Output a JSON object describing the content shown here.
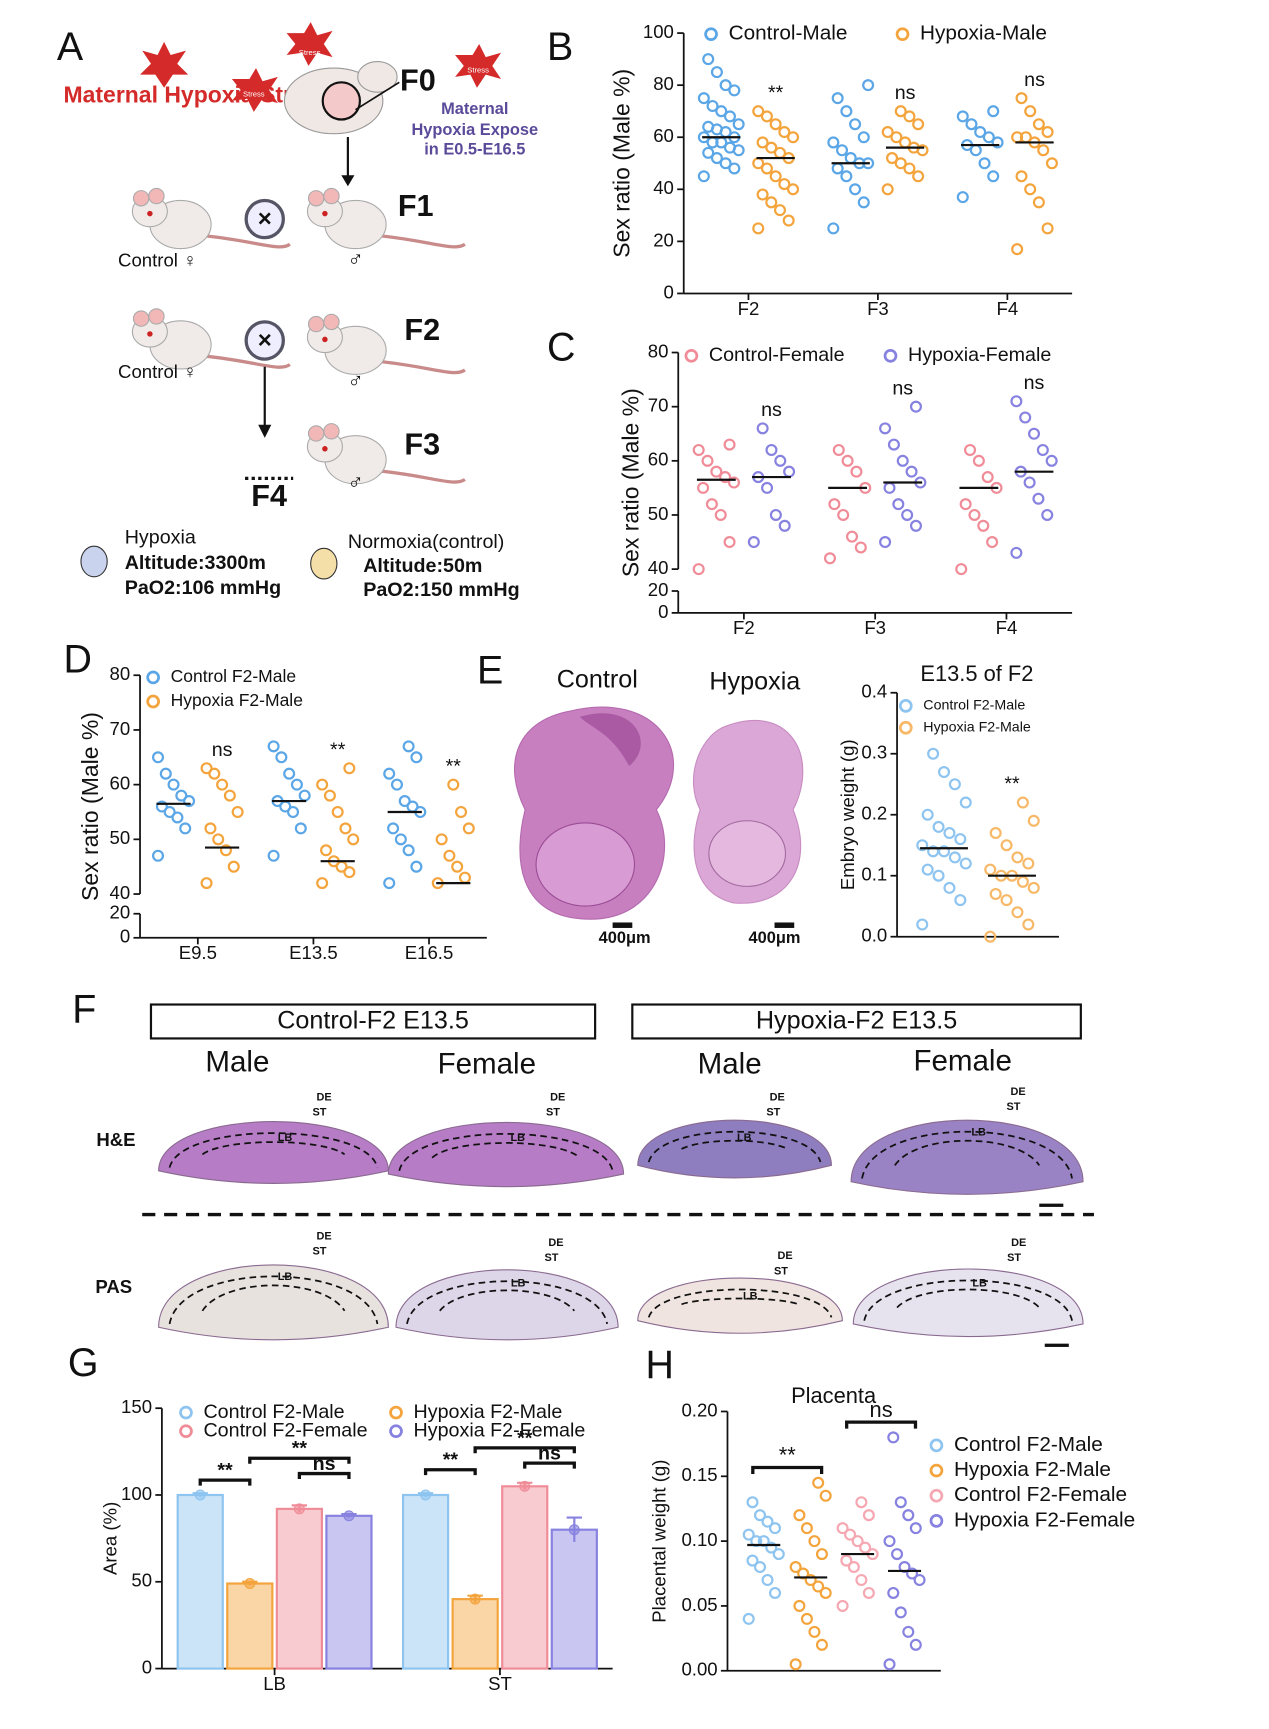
{
  "panels": [
    "A",
    "B",
    "C",
    "D",
    "E",
    "F",
    "G",
    "H"
  ],
  "diagram": {
    "stress_title": "Maternal Hypoxia Stress",
    "stress": "Stress",
    "f0": "F0",
    "expose": [
      "Maternal",
      "Hypoxia Expose",
      "in E0.5-E16.5"
    ],
    "generations": [
      "F1",
      "F2",
      "F3",
      "F4"
    ],
    "control_female": "Control ♀",
    "male": "♂",
    "hypoxia_legend": [
      "Hypoxia",
      "Altitude:3300m",
      "PaO2:106 mmHg"
    ],
    "normoxia_legend": [
      "Normoxia(control)",
      "Altitude:50m",
      "PaO2:150 mmHg"
    ]
  },
  "embryo_images": {
    "labels": [
      "Control",
      "Hypoxia"
    ],
    "scale_bar": "400μm"
  },
  "placenta_images": {
    "groups": [
      "Control-F2 E13.5",
      "Hypoxia-F2 E13.5"
    ],
    "sexes": [
      "Male",
      "Female"
    ],
    "stains": [
      "H&E",
      "PAS"
    ],
    "regions": [
      "DE",
      "ST",
      "LB"
    ]
  },
  "chart_data": [
    {
      "type": "dot",
      "ylabel": "Sex ratio (Male %)",
      "categories": [
        "F2",
        "F3",
        "F4"
      ],
      "ylim": [
        0,
        100
      ],
      "yticks": [
        0,
        20,
        40,
        60,
        80,
        100
      ],
      "series": [
        {
          "name": "Control-Male",
          "color": "#5aa6e6",
          "values": [
            [
              45,
              48,
              50,
              52,
              54,
              55,
              56,
              58,
              58,
              60,
              60,
              62,
              63,
              64,
              65,
              68,
              70,
              72,
              75,
              78,
              80,
              85,
              90
            ],
            [
              25,
              35,
              40,
              45,
              48,
              50,
              50,
              52,
              55,
              58,
              60,
              65,
              70,
              75,
              80
            ],
            [
              37,
              45,
              50,
              55,
              57,
              58,
              60,
              62,
              65,
              68,
              70
            ]
          ],
          "means": [
            60,
            50,
            57
          ]
        },
        {
          "name": "Hypoxia-Male",
          "color": "#f4a43c",
          "values": [
            [
              25,
              28,
              32,
              35,
              38,
              40,
              42,
              45,
              48,
              50,
              52,
              54,
              56,
              58,
              60,
              62,
              65,
              68,
              70
            ],
            [
              40,
              45,
              48,
              50,
              52,
              55,
              56,
              58,
              60,
              62,
              65,
              68,
              70
            ],
            [
              17,
              25,
              35,
              40,
              45,
              50,
              55,
              58,
              60,
              60,
              62,
              65,
              70,
              75
            ]
          ],
          "means": [
            52,
            56,
            58
          ]
        }
      ],
      "annotations": [
        "**",
        "ns",
        "ns"
      ]
    },
    {
      "type": "dot",
      "ylabel": "Sex ratio (Male %)",
      "categories": [
        "F2",
        "F3",
        "F4"
      ],
      "ylim": [
        0,
        80
      ],
      "axis_break": [
        20,
        40
      ],
      "yticks": [
        0,
        20,
        40,
        50,
        60,
        70,
        80
      ],
      "series": [
        {
          "name": "Control-Female",
          "color": "#f08c98",
          "values": [
            [
              40,
              45,
              50,
              52,
              55,
              56,
              57,
              58,
              60,
              62,
              63
            ],
            [
              42,
              44,
              46,
              50,
              52,
              55,
              58,
              60,
              62
            ],
            [
              40,
              45,
              48,
              50,
              52,
              55,
              57,
              60,
              62
            ]
          ],
          "means": [
            56.5,
            55,
            55
          ]
        },
        {
          "name": "Hypoxia-Female",
          "color": "#8782e0",
          "values": [
            [
              45,
              48,
              50,
              55,
              57,
              58,
              60,
              62,
              66
            ],
            [
              45,
              48,
              50,
              52,
              55,
              56,
              58,
              60,
              63,
              66,
              70
            ],
            [
              43,
              50,
              53,
              56,
              58,
              60,
              62,
              65,
              68,
              71
            ]
          ],
          "means": [
            57,
            56,
            58
          ]
        }
      ],
      "annotations": [
        "ns",
        "ns",
        "ns"
      ]
    },
    {
      "type": "dot",
      "ylabel": "Sex ratio (Male %)",
      "categories": [
        "E9.5",
        "E13.5",
        "E16.5"
      ],
      "ylim": [
        0,
        80
      ],
      "axis_break": [
        20,
        40
      ],
      "yticks": [
        0,
        20,
        40,
        50,
        60,
        70,
        80
      ],
      "series": [
        {
          "name": "Control F2-Male",
          "color": "#5aa6e6",
          "values": [
            [
              47,
              52,
              54,
              55,
              56,
              57,
              58,
              60,
              62,
              65
            ],
            [
              47,
              52,
              55,
              56,
              57,
              58,
              60,
              62,
              65,
              67
            ],
            [
              42,
              45,
              48,
              50,
              52,
              55,
              56,
              57,
              60,
              62,
              65,
              67
            ]
          ],
          "means": [
            56.5,
            57,
            55
          ]
        },
        {
          "name": "Hypoxia F2-Male",
          "color": "#f4a43c",
          "values": [
            [
              42,
              45,
              48,
              50,
              52,
              55,
              58,
              60,
              62,
              63
            ],
            [
              42,
              44,
              45,
              46,
              48,
              50,
              52,
              55,
              58,
              60,
              63
            ],
            [
              42,
              43,
              45,
              47,
              50,
              52,
              55,
              60
            ]
          ],
          "means": [
            48.5,
            46,
            42
          ]
        }
      ],
      "annotations": [
        "ns",
        "**",
        "**"
      ]
    },
    {
      "type": "dot",
      "title": "E13.5 of F2",
      "ylabel": "Embryo weight (g)",
      "categories": [
        null
      ],
      "ylim": [
        0,
        0.4
      ],
      "yticks": [
        {
          "value": 0,
          "label": "0.0"
        },
        0.1,
        0.2,
        0.3,
        0.4
      ],
      "series": [
        {
          "name": "Control F2-Male",
          "color": "#8ec4f0",
          "values": [
            [
              0.02,
              0.06,
              0.08,
              0.1,
              0.11,
              0.12,
              0.13,
              0.14,
              0.14,
              0.15,
              0.16,
              0.17,
              0.18,
              0.2,
              0.22,
              0.25,
              0.27,
              0.3
            ]
          ],
          "means": [
            0.145
          ]
        },
        {
          "name": "Hypoxia F2-Male",
          "color": "#f7b867",
          "values": [
            [
              0.0,
              0.02,
              0.04,
              0.06,
              0.07,
              0.08,
              0.09,
              0.1,
              0.1,
              0.11,
              0.12,
              0.13,
              0.15,
              0.17,
              0.19,
              0.22
            ]
          ],
          "means": [
            0.1
          ]
        }
      ],
      "annotations": [
        "**"
      ]
    },
    {
      "type": "bar",
      "ylabel": "Area (%)",
      "categories": [
        "LB",
        "ST"
      ],
      "ylim": [
        0,
        150
      ],
      "yticks": [
        0,
        50,
        100,
        150
      ],
      "series": [
        {
          "name": "Control F2-Male",
          "color": "#8ec4f0",
          "values": [
            100,
            100
          ],
          "errors": [
            1,
            1
          ]
        },
        {
          "name": "Hypoxia F2-Male",
          "color": "#f4a43c",
          "values": [
            49,
            40
          ],
          "errors": [
            1,
            2
          ]
        },
        {
          "name": "Control F2-Female",
          "color": "#f08c98",
          "values": [
            92,
            105
          ],
          "errors": [
            2,
            2
          ]
        },
        {
          "name": "Hypoxia F2-Female",
          "color": "#8782e0",
          "values": [
            88,
            80
          ],
          "errors": [
            1,
            7
          ]
        }
      ],
      "annotations": [
        [
          "**",
          "**",
          "ns"
        ],
        [
          "**",
          "**",
          "ns"
        ]
      ]
    },
    {
      "type": "dot",
      "title": "Placenta",
      "ylabel": "Placental weight (g)",
      "categories": [
        null
      ],
      "ylim": [
        0,
        0.2
      ],
      "yticks": [
        {
          "value": 0,
          "label": "0.00"
        },
        {
          "value": 0.05,
          "label": "0.05"
        },
        {
          "value": 0.1,
          "label": "0.10"
        },
        {
          "value": 0.15,
          "label": "0.15"
        },
        {
          "value": 0.2,
          "label": "0.20"
        }
      ],
      "series": [
        {
          "name": "Control F2-Male",
          "color": "#8ec4f0",
          "values": [
            [
              0.04,
              0.06,
              0.07,
              0.08,
              0.085,
              0.09,
              0.095,
              0.1,
              0.1,
              0.105,
              0.11,
              0.115,
              0.12,
              0.13
            ]
          ],
          "means": [
            0.097
          ]
        },
        {
          "name": "Hypoxia F2-Male",
          "color": "#f4a43c",
          "values": [
            [
              0.005,
              0.02,
              0.03,
              0.04,
              0.05,
              0.06,
              0.065,
              0.07,
              0.075,
              0.08,
              0.09,
              0.1,
              0.11,
              0.12,
              0.135,
              0.145
            ]
          ],
          "means": [
            0.072
          ]
        },
        {
          "name": "Control F2-Female",
          "color": "#f5a8b2",
          "values": [
            [
              0.05,
              0.06,
              0.07,
              0.08,
              0.085,
              0.09,
              0.095,
              0.1,
              0.105,
              0.11,
              0.12,
              0.13
            ]
          ],
          "means": [
            0.09
          ]
        },
        {
          "name": "Hypoxia F2-Female",
          "color": "#8782e0",
          "values": [
            [
              0.005,
              0.02,
              0.03,
              0.045,
              0.06,
              0.07,
              0.075,
              0.08,
              0.09,
              0.1,
              0.11,
              0.12,
              0.13,
              0.18
            ]
          ],
          "means": [
            0.077
          ]
        }
      ],
      "annotations": [
        "**",
        "ns"
      ]
    }
  ]
}
